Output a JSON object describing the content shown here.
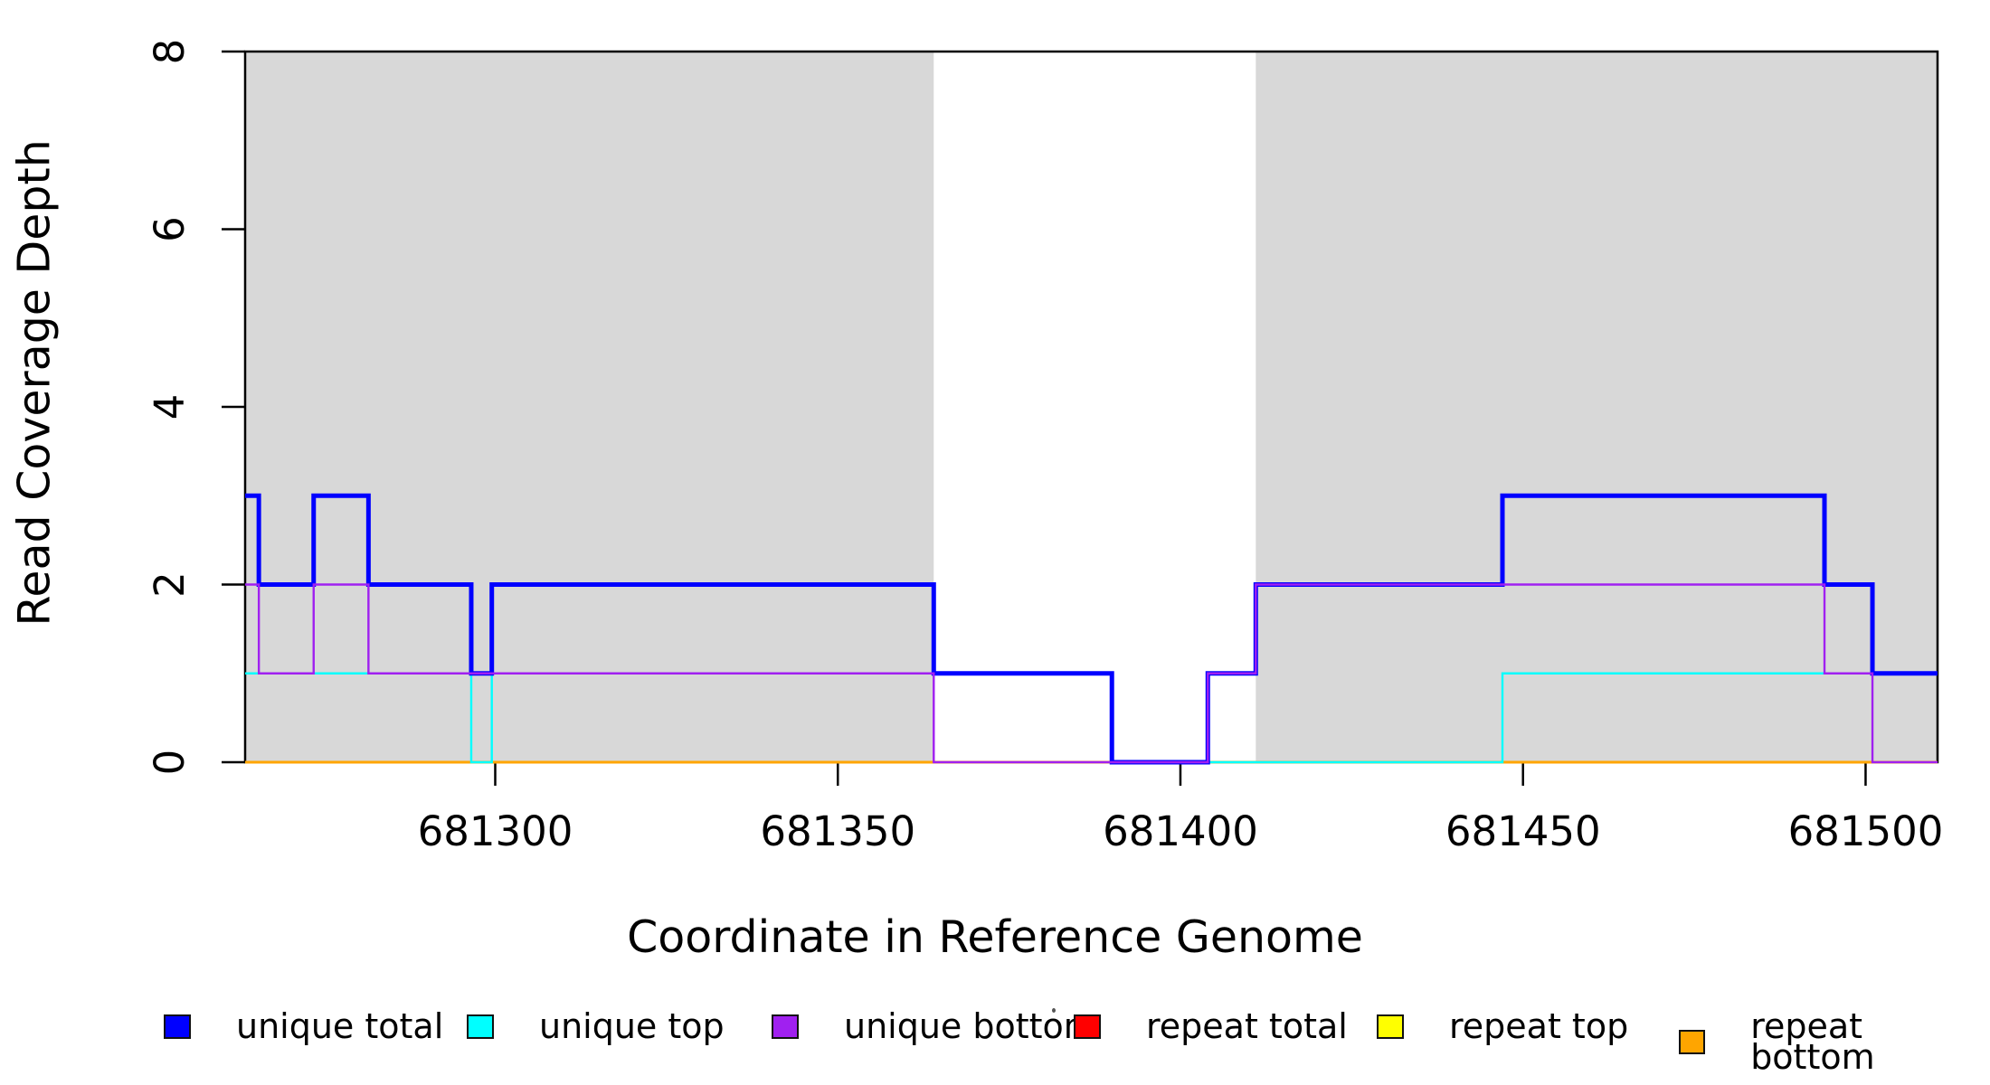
{
  "figure": {
    "background": "#ffffff",
    "plot_area_fill": "#ffffff",
    "shaded_region_color": "#d8d8d8",
    "box_color": "#000000"
  },
  "chart_data": {
    "type": "line",
    "subtype": "step",
    "title": "",
    "xlabel": "Coordinate in Reference Genome",
    "ylabel": "Read Coverage Depth",
    "xlim": [
      681263.5,
      681510.5
    ],
    "ylim": [
      0,
      8
    ],
    "x_ticks": [
      "681300",
      "681350",
      "681400",
      "681450",
      "681500"
    ],
    "x_tick_values": [
      681300,
      681350,
      681400,
      681450,
      681500
    ],
    "y_ticks": [
      "0",
      "2",
      "4",
      "6",
      "8"
    ],
    "y_tick_values": [
      0,
      2,
      4,
      6,
      8
    ],
    "grid": false,
    "legend_position": "bottom",
    "shaded_regions": [
      {
        "x0": 681263.5,
        "x1": 681364,
        "name": "shaded-region-left"
      },
      {
        "x0": 681411,
        "x1": 681510.5,
        "name": "shaded-region-right"
      }
    ],
    "series": [
      {
        "name": "repeat total",
        "color": "#FF0000",
        "width": 2.4,
        "steps": [
          [
            681263.5,
            0
          ]
        ]
      },
      {
        "name": "repeat top",
        "color": "#FFFF00",
        "width": 2.4,
        "steps": [
          [
            681263.5,
            0
          ]
        ]
      },
      {
        "name": "repeat bottom",
        "color": "#FFA500",
        "width": 3,
        "steps": [
          [
            681263.5,
            0
          ]
        ]
      },
      {
        "name": "unique top",
        "color": "#00FFFF",
        "width": 2.4,
        "steps": [
          [
            681263.5,
            1
          ],
          [
            681296.5,
            0
          ],
          [
            681299.5,
            1
          ],
          [
            681390,
            0
          ],
          [
            681447,
            1
          ]
        ]
      },
      {
        "name": "unique total",
        "color": "#0000FF",
        "width": 5,
        "steps": [
          [
            681263.5,
            3
          ],
          [
            681265.5,
            2
          ],
          [
            681273.5,
            3
          ],
          [
            681281.5,
            2
          ],
          [
            681296.5,
            1
          ],
          [
            681299.5,
            2
          ],
          [
            681364,
            1
          ],
          [
            681390,
            0
          ],
          [
            681404,
            1
          ],
          [
            681411,
            2
          ],
          [
            681447,
            3
          ],
          [
            681494,
            2
          ],
          [
            681501,
            1
          ]
        ]
      },
      {
        "name": "unique bottom",
        "color": "#A020F0",
        "width": 2.4,
        "steps": [
          [
            681263.5,
            2
          ],
          [
            681265.5,
            1
          ],
          [
            681273.5,
            2
          ],
          [
            681281.5,
            1
          ],
          [
            681364,
            0
          ],
          [
            681404,
            1
          ],
          [
            681411,
            2
          ],
          [
            681494,
            1
          ],
          [
            681501,
            0
          ]
        ]
      }
    ],
    "legend": [
      {
        "label": "unique total",
        "color": "#0000FF"
      },
      {
        "label": "unique top",
        "color": "#00FFFF"
      },
      {
        "label": "unique bottom",
        "color": "#A020F0"
      },
      {
        "label": "repeat total",
        "color": "#FF0000"
      },
      {
        "label": "repeat top",
        "color": "#FFFF00"
      },
      {
        "label": "repeat bottom",
        "color": "#FFA500"
      }
    ]
  }
}
